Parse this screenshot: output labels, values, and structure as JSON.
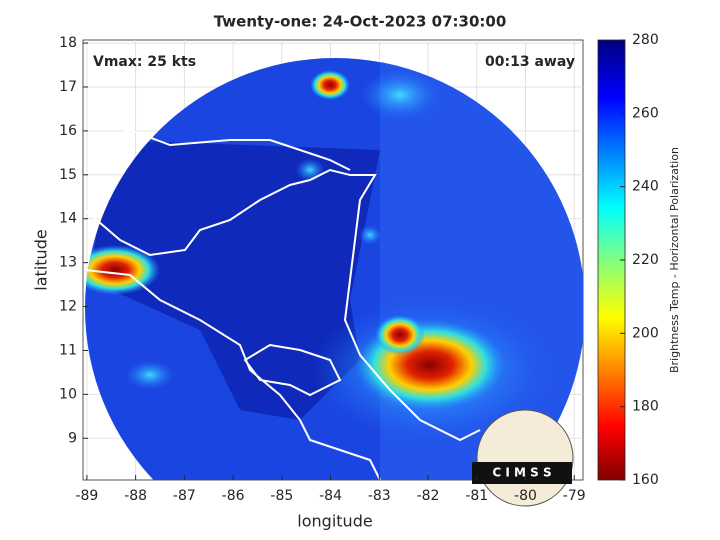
{
  "chart_data": {
    "type": "map",
    "title": "Twenty-one: 24-Oct-2023 07:30:00",
    "annotations": [
      "Vmax: 25 kts",
      "00:13 away"
    ],
    "xlabel": "longitude",
    "ylabel": "latitude",
    "xlim": [
      -89.08,
      -78.82
    ],
    "ylim": [
      8.05,
      18.07
    ],
    "xticks": [
      -89,
      -88,
      -87,
      -86,
      -85,
      -84,
      -83,
      -82,
      -81,
      -80,
      -79
    ],
    "yticks": [
      9,
      10,
      11,
      12,
      13,
      14,
      15,
      16,
      17,
      18
    ],
    "grid": true,
    "colorbar": {
      "label": "Brightness Temp - Horizontal Polarization",
      "colormap": "jet",
      "lim": [
        160,
        280
      ],
      "ticks": [
        160,
        180,
        200,
        220,
        240,
        260,
        280
      ]
    },
    "logo": "C I M S S"
  }
}
